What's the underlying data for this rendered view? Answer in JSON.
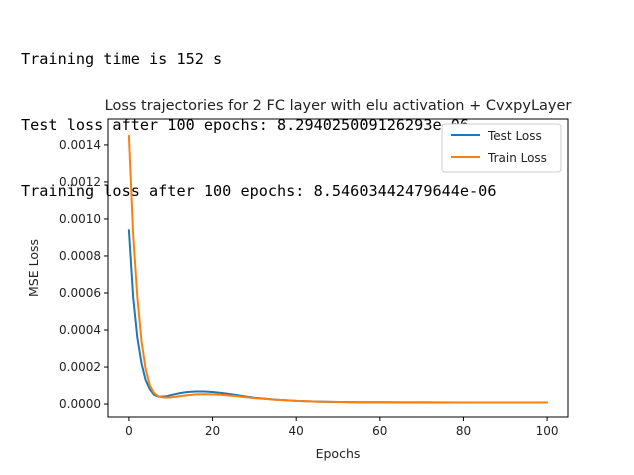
{
  "console": {
    "lines": [
      "Training time is 152 s",
      "Test loss after 100 epochs: 8.294025009126293e-06",
      "Training loss after 100 epochs: 8.54603442479644e-06"
    ]
  },
  "chart_data": {
    "type": "line",
    "title": "Loss trajectories for 2 FC layer with elu activation + CvxpyLayer",
    "xlabel": "Epochs",
    "ylabel": "MSE Loss",
    "xlim": [
      -5,
      105
    ],
    "ylim": [
      -7e-05,
      0.00154
    ],
    "xticks": [
      0,
      20,
      40,
      60,
      80,
      100
    ],
    "xtick_labels": [
      "0",
      "20",
      "40",
      "60",
      "80",
      "100"
    ],
    "yticks": [
      0,
      0.0002,
      0.0004,
      0.0006,
      0.0008,
      0.001,
      0.0012,
      0.0014
    ],
    "ytick_labels": [
      "0.0000",
      "0.0002",
      "0.0004",
      "0.0006",
      "0.0008",
      "0.0010",
      "0.0012",
      "0.0014"
    ],
    "grid": false,
    "legend_position": "top-right",
    "series": [
      {
        "name": "Test Loss",
        "color": "#1f77b4",
        "x": [
          0,
          1,
          2,
          3,
          4,
          5,
          6,
          7,
          8,
          9,
          10,
          12,
          14,
          16,
          18,
          20,
          22,
          24,
          26,
          28,
          30,
          35,
          40,
          45,
          50,
          55,
          60,
          65,
          70,
          75,
          80,
          85,
          90,
          95,
          100
        ],
        "y": [
          0.00094,
          0.00058,
          0.00036,
          0.00022,
          0.00013,
          8e-05,
          5e-05,
          4e-05,
          4e-05,
          4.2e-05,
          4.8e-05,
          5.8e-05,
          6.5e-05,
          6.8e-05,
          6.8e-05,
          6.5e-05,
          6e-05,
          5.4e-05,
          4.7e-05,
          4e-05,
          3.4e-05,
          2.4e-05,
          1.7e-05,
          1.3e-05,
          1.1e-05,
          1e-05,
          9.5e-06,
          9e-06,
          8.8e-06,
          8.6e-06,
          8.5e-06,
          8.4e-06,
          8.3e-06,
          8.3e-06,
          8.3e-06
        ]
      },
      {
        "name": "Train Loss",
        "color": "#ff7f0e",
        "x": [
          0,
          1,
          2,
          3,
          4,
          5,
          6,
          7,
          8,
          9,
          10,
          12,
          14,
          16,
          18,
          20,
          22,
          24,
          26,
          28,
          30,
          35,
          40,
          45,
          50,
          55,
          60,
          65,
          70,
          75,
          80,
          85,
          90,
          95,
          100
        ],
        "y": [
          0.00145,
          0.00092,
          0.00058,
          0.00034,
          0.00019,
          0.0001,
          6e-05,
          4.2e-05,
          3.6e-05,
          3.5e-05,
          3.6e-05,
          4.2e-05,
          4.8e-05,
          5.2e-05,
          5.3e-05,
          5.2e-05,
          5e-05,
          4.6e-05,
          4.2e-05,
          3.7e-05,
          3.2e-05,
          2.3e-05,
          1.7e-05,
          1.3e-05,
          1.1e-05,
          1e-05,
          9.5e-06,
          9e-06,
          8.8e-06,
          8.7e-06,
          8.6e-06,
          8.6e-06,
          8.5e-06,
          8.5e-06,
          8.5e-06
        ]
      }
    ]
  }
}
